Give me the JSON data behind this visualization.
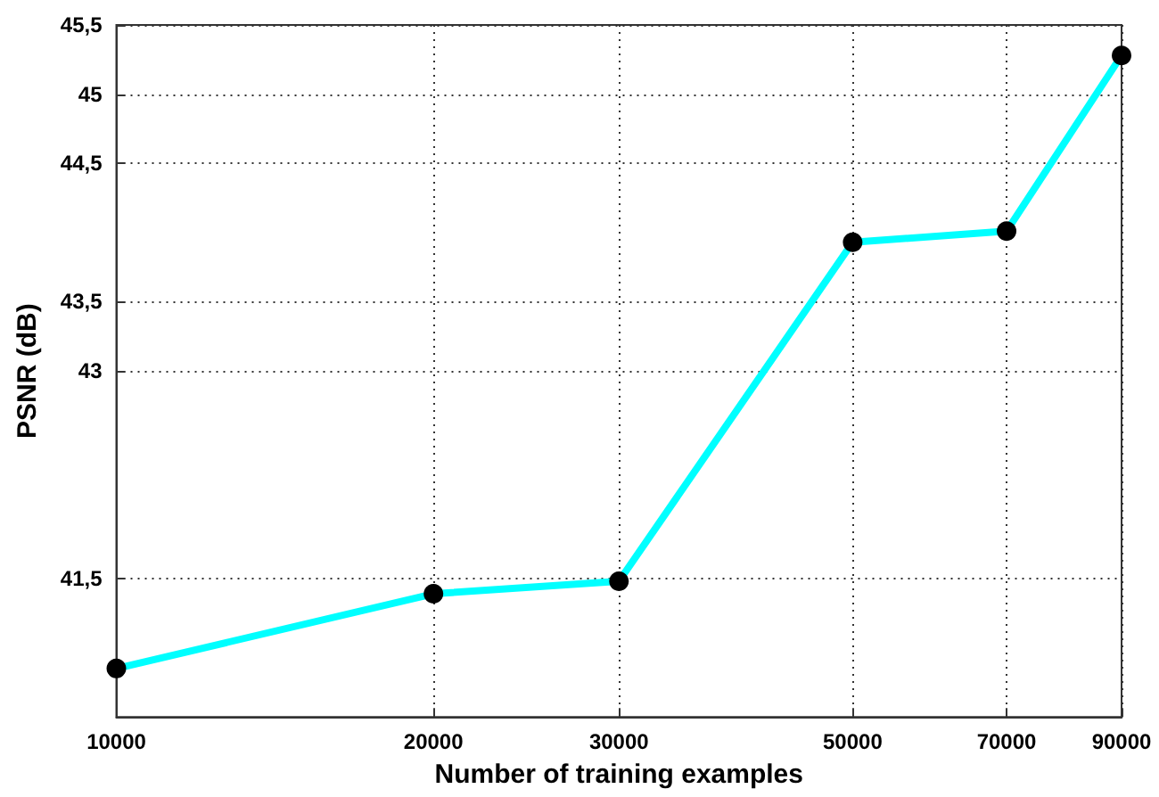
{
  "chart_data": {
    "type": "line",
    "xlabel": "Number of training examples",
    "ylabel": "PSNR (dB)",
    "x": [
      10000,
      20000,
      30000,
      50000,
      70000,
      90000
    ],
    "series": [
      {
        "color": "#00ffff",
        "values": [
          40.85,
          41.39,
          41.48,
          43.93,
          44.01,
          45.28
        ]
      }
    ],
    "log": "x",
    "xlim": [
      10000,
      90000
    ],
    "xticks": [
      10000,
      20000,
      30000,
      50000,
      70000,
      90000
    ],
    "ylim": [
      40.5,
      45.5
    ],
    "yticks": [
      {
        "value": 41.5,
        "label": "41,5"
      },
      43,
      {
        "value": 43.5,
        "label": "43,5"
      },
      {
        "value": 44.5,
        "label": "44,5"
      },
      45,
      {
        "value": 45.5,
        "label": "45,5"
      }
    ],
    "grid": true,
    "marker": "circle",
    "line_style": "solid"
  }
}
